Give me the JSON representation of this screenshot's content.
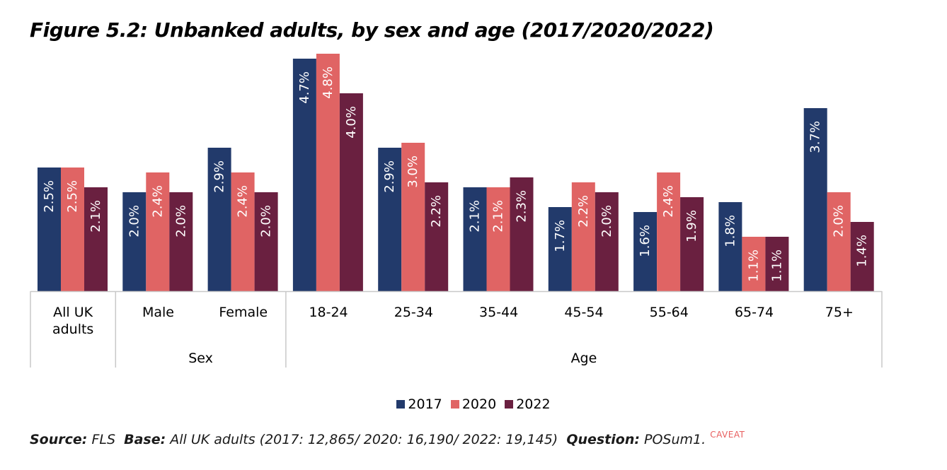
{
  "title": "Figure 5.2: Unbanked adults, by sex and age (2017/2020/2022)",
  "footer": {
    "source_label": "Source:",
    "source_value": "FLS",
    "base_label": "Base:",
    "base_value": "All UK adults (2017: 12,865/ 2020: 16,190/ 2022: 19,145)",
    "question_label": "Question:",
    "question_value": "POSum1.",
    "caveat": "CAVEAT"
  },
  "chart_data": {
    "type": "bar",
    "categories": [
      "All UK adults",
      "Male",
      "Female",
      "18-24",
      "25-34",
      "35-44",
      "45-54",
      "55-64",
      "65-74",
      "75+"
    ],
    "category_lines": [
      [
        "All UK",
        "adults"
      ],
      [
        "Male"
      ],
      [
        "Female"
      ],
      [
        "18-24"
      ],
      [
        "25-34"
      ],
      [
        "35-44"
      ],
      [
        "45-54"
      ],
      [
        "55-64"
      ],
      [
        "65-74"
      ],
      [
        "75+"
      ]
    ],
    "groups": [
      {
        "label": "",
        "categories": [
          "All UK adults"
        ]
      },
      {
        "label": "Sex",
        "categories": [
          "Male",
          "Female"
        ]
      },
      {
        "label": "Age",
        "categories": [
          "18-24",
          "25-34",
          "35-44",
          "45-54",
          "55-64",
          "65-74",
          "75+"
        ]
      }
    ],
    "series": [
      {
        "name": "2017",
        "color": "#223a6b",
        "values": [
          2.5,
          2.0,
          2.9,
          4.7,
          2.9,
          2.1,
          1.7,
          1.6,
          1.8,
          3.7
        ],
        "labels": [
          "2.5%",
          "2.0%",
          "2.9%",
          "4.7%",
          "2.9%",
          "2.1%",
          "1.7%",
          "1.6%",
          "1.8%",
          "3.7%"
        ]
      },
      {
        "name": "2020",
        "color": "#e06464",
        "values": [
          2.5,
          2.4,
          2.4,
          4.8,
          3.0,
          2.1,
          2.2,
          2.4,
          1.1,
          2.0
        ],
        "labels": [
          "2.5%",
          "2.4%",
          "2.4%",
          "4.8%",
          "3.0%",
          "2.1%",
          "2.2%",
          "2.4%",
          "1.1%",
          "2.0%"
        ]
      },
      {
        "name": "2022",
        "color": "#6a2040",
        "values": [
          2.1,
          2.0,
          2.0,
          4.0,
          2.2,
          2.3,
          2.0,
          1.9,
          1.1,
          1.4
        ],
        "labels": [
          "2.1%",
          "2.0%",
          "2.0%",
          "4.0%",
          "2.2%",
          "2.3%",
          "2.0%",
          "1.9%",
          "1.1%",
          "1.4%"
        ]
      }
    ],
    "ylim": [
      0,
      4.8
    ],
    "grid": false,
    "legend_position": "bottom"
  }
}
